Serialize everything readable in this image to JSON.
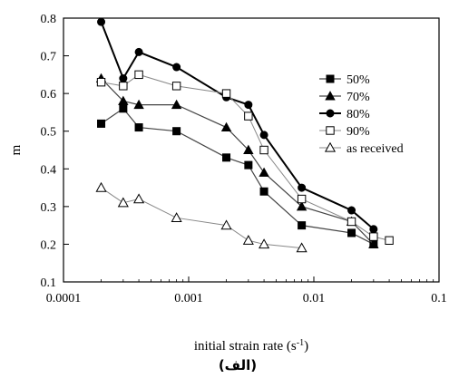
{
  "chart_data": {
    "type": "line",
    "xlabel": "initial strain rate (s",
    "xlabel_sup": "-1",
    "xlabel_end": ")",
    "ylabel": "m",
    "caption": "(الف)",
    "x_scale": "log",
    "xlim": [
      0.0001,
      0.1
    ],
    "ylim": [
      0.1,
      0.8
    ],
    "x_ticks": [
      0.0001,
      0.001,
      0.01,
      0.1
    ],
    "x_tick_labels": [
      "0.0001",
      "0.001",
      "0.01",
      "0.1"
    ],
    "y_ticks": [
      0.1,
      0.2,
      0.3,
      0.4,
      0.5,
      0.6,
      0.7,
      0.8
    ],
    "y_tick_labels": [
      "0.1",
      "0.2",
      "0.3",
      "0.4",
      "0.5",
      "0.6",
      "0.7",
      "0.8"
    ],
    "grid": false,
    "legend_position": "right",
    "series": [
      {
        "name": "50%",
        "marker": "square-filled",
        "line_color": "#444444",
        "line_width": 1.2,
        "x": [
          0.0002,
          0.0003,
          0.0004,
          0.0008,
          0.002,
          0.003,
          0.004,
          0.008,
          0.02,
          0.03
        ],
        "y": [
          0.52,
          0.56,
          0.51,
          0.5,
          0.43,
          0.41,
          0.34,
          0.25,
          0.23,
          0.2
        ]
      },
      {
        "name": "70%",
        "marker": "triangle-filled",
        "line_color": "#444444",
        "line_width": 1.2,
        "x": [
          0.0002,
          0.0003,
          0.0004,
          0.0008,
          0.002,
          0.003,
          0.004,
          0.008,
          0.02,
          0.03
        ],
        "y": [
          0.64,
          0.58,
          0.57,
          0.57,
          0.51,
          0.45,
          0.39,
          0.3,
          0.26,
          0.2
        ]
      },
      {
        "name": "80%",
        "marker": "circle-filled",
        "line_color": "#000000",
        "line_width": 2,
        "x": [
          0.0002,
          0.0003,
          0.0004,
          0.0008,
          0.002,
          0.003,
          0.004,
          0.008,
          0.02,
          0.03
        ],
        "y": [
          0.79,
          0.64,
          0.71,
          0.67,
          0.59,
          0.57,
          0.49,
          0.35,
          0.29,
          0.24
        ]
      },
      {
        "name": "90%",
        "marker": "square-open",
        "line_color": "#888888",
        "line_width": 1,
        "x": [
          0.0002,
          0.0003,
          0.0004,
          0.0008,
          0.002,
          0.003,
          0.004,
          0.008,
          0.02,
          0.03,
          0.04
        ],
        "y": [
          0.63,
          0.62,
          0.65,
          0.62,
          0.6,
          0.54,
          0.45,
          0.32,
          0.26,
          0.22,
          0.21
        ]
      },
      {
        "name": "as received",
        "marker": "triangle-open",
        "line_color": "#888888",
        "line_width": 1,
        "x": [
          0.0002,
          0.0003,
          0.0004,
          0.0008,
          0.002,
          0.003,
          0.004,
          0.008
        ],
        "y": [
          0.35,
          0.31,
          0.32,
          0.27,
          0.25,
          0.21,
          0.2,
          0.19
        ]
      }
    ]
  }
}
